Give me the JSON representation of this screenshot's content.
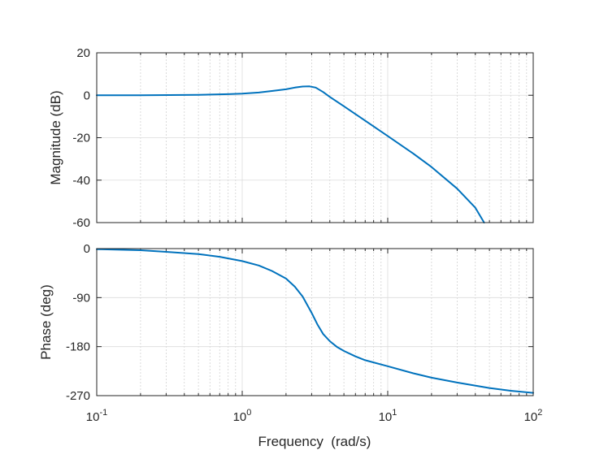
{
  "chart_data": {
    "type": "line",
    "title": "",
    "xlabel": "Frequency  (rad/s)",
    "x_scale": "log",
    "xlim": [
      0.1,
      100
    ],
    "x_ticks": [
      {
        "base": "10",
        "exp": "-1",
        "value": 0.1
      },
      {
        "base": "10",
        "exp": "0",
        "value": 1
      },
      {
        "base": "10",
        "exp": "1",
        "value": 10
      },
      {
        "base": "10",
        "exp": "2",
        "value": 100
      }
    ],
    "grid": true,
    "line_color": "#0072BD",
    "subplots": [
      {
        "name": "magnitude",
        "ylabel": "Magnitude (dB)",
        "ylim": [
          -60,
          20
        ],
        "y_ticks": [
          {
            "label": "20",
            "value": 20
          },
          {
            "label": "0",
            "value": 0
          },
          {
            "label": "-20",
            "value": -20
          },
          {
            "label": "-40",
            "value": -40
          },
          {
            "label": "-60",
            "value": -60
          }
        ],
        "series": [
          {
            "name": "Magnitude",
            "x": [
              0.1,
              0.2,
              0.5,
              0.8,
              1.0,
              1.3,
              1.6,
              2.0,
              2.3,
              2.6,
              2.9,
              3.2,
              3.6,
              4.0,
              5.0,
              7.0,
              10.0,
              15.0,
              20.0,
              30.0,
              40.0,
              46.0
            ],
            "y": [
              0.0,
              0.0,
              0.2,
              0.5,
              0.8,
              1.3,
              2.0,
              2.8,
              3.6,
              4.1,
              4.2,
              3.6,
              1.5,
              -0.8,
              -5.2,
              -12.0,
              -19.2,
              -27.5,
              -33.8,
              -44.0,
              -53.0,
              -60.0
            ]
          }
        ]
      },
      {
        "name": "phase",
        "ylabel": "Phase (deg)",
        "ylim": [
          -270,
          0
        ],
        "y_ticks": [
          {
            "label": "0",
            "value": 0
          },
          {
            "label": "-90",
            "value": -90
          },
          {
            "label": "-180",
            "value": -180
          },
          {
            "label": "-270",
            "value": -270
          }
        ],
        "series": [
          {
            "name": "Phase",
            "x": [
              0.1,
              0.2,
              0.3,
              0.5,
              0.7,
              1.0,
              1.3,
              1.6,
              2.0,
              2.3,
              2.6,
              3.0,
              3.3,
              3.6,
              4.0,
              4.5,
              5.0,
              6.0,
              7.0,
              10.0,
              15.0,
              20.0,
              30.0,
              50.0,
              70.0,
              100.0
            ],
            "y": [
              -1,
              -3,
              -6,
              -10,
              -15,
              -23,
              -31,
              -41,
              -55,
              -70,
              -88,
              -118,
              -140,
              -157,
              -170,
              -181,
              -188,
              -198,
              -205,
              -216,
              -229,
              -237,
              -246,
              -256,
              -261,
              -265
            ]
          }
        ]
      }
    ]
  }
}
